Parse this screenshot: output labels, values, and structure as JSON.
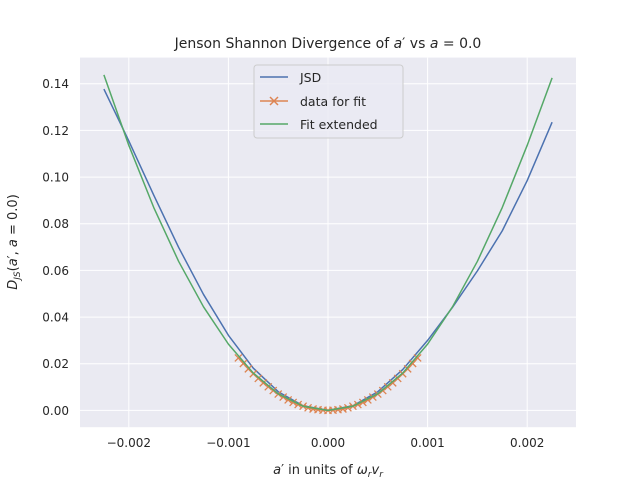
{
  "chart_data": {
    "type": "line",
    "title_parts": {
      "prefix": "Jenson Shannon Divergence of ",
      "var": "a",
      "prime": "′",
      "middle": " vs ",
      "var2": "a",
      "suffix": " = 0.0"
    },
    "xlabel_parts": {
      "var": "a",
      "prime": "′",
      "middle": " in units of ",
      "omega": "ω",
      "sub_r1": "r",
      "v": "v",
      "sub_r2": "r"
    },
    "ylabel_parts": {
      "D": "D",
      "sub": "JS",
      "open": "(",
      "var": "a",
      "prime": "′",
      "middle": ", ",
      "var2": "a",
      "suffix": " = 0.0)"
    },
    "xlim": [
      -0.00249,
      0.00249
    ],
    "ylim": [
      -0.0072,
      0.1512
    ],
    "xticks": [
      -0.002,
      -0.001,
      0.0,
      0.001,
      0.002
    ],
    "xtick_labels": [
      "−0.002",
      "−0.001",
      "0.000",
      "0.001",
      "0.002"
    ],
    "yticks": [
      0.0,
      0.02,
      0.04,
      0.06,
      0.08,
      0.1,
      0.12,
      0.14
    ],
    "ytick_labels": [
      "0.00",
      "0.02",
      "0.04",
      "0.06",
      "0.08",
      "0.10",
      "0.12",
      "0.14"
    ],
    "grid": true,
    "legend_position": "top-center",
    "series": [
      {
        "name": "JSD",
        "color": "#4c72b0",
        "marker": "none",
        "x": [
          -0.00225,
          -0.002,
          -0.00175,
          -0.0015,
          -0.00125,
          -0.001,
          -0.00075,
          -0.0005,
          -0.00025,
          0.0,
          0.00025,
          0.0005,
          0.00075,
          0.001,
          0.00125,
          0.0015,
          0.00175,
          0.002,
          0.00225
        ],
        "y": [
          0.1377,
          0.1155,
          0.0923,
          0.0699,
          0.0497,
          0.0322,
          0.0181,
          0.008,
          0.002,
          0.0,
          0.002,
          0.008,
          0.0175,
          0.03,
          0.0442,
          0.0598,
          0.077,
          0.0985,
          0.1235
        ]
      },
      {
        "name": "data for fit",
        "color": "#dd8452",
        "marker": "x",
        "x": [
          -0.0009,
          -0.00085,
          -0.0008,
          -0.00075,
          -0.0007,
          -0.00065,
          -0.0006,
          -0.00055,
          -0.0005,
          -0.00045,
          -0.0004,
          -0.00035,
          -0.0003,
          -0.00025,
          -0.0002,
          -0.00015,
          -0.0001,
          -5e-05,
          0.0,
          5e-05,
          0.0001,
          0.00015,
          0.0002,
          0.00025,
          0.0003,
          0.00035,
          0.0004,
          0.00045,
          0.0005,
          0.00055,
          0.0006,
          0.00065,
          0.0007,
          0.00075,
          0.0008,
          0.00085,
          0.0009
        ],
        "y": [
          0.0225,
          0.0201,
          0.0178,
          0.0157,
          0.0137,
          0.0118,
          0.0101,
          0.0085,
          0.007,
          0.0057,
          0.0045,
          0.0034,
          0.0025,
          0.0018,
          0.0011,
          0.0006,
          0.0003,
          0.0001,
          0.0,
          0.0001,
          0.0003,
          0.0006,
          0.0011,
          0.0018,
          0.0025,
          0.0034,
          0.0045,
          0.0057,
          0.007,
          0.0085,
          0.0101,
          0.0118,
          0.0137,
          0.0157,
          0.0178,
          0.0201,
          0.0225
        ]
      },
      {
        "name": "Fit extended",
        "color": "#55a868",
        "marker": "none",
        "x": [
          -0.00225,
          -0.002,
          -0.00175,
          -0.0015,
          -0.00125,
          -0.001,
          -0.00075,
          -0.0005,
          -0.00025,
          0.0,
          0.00025,
          0.0005,
          0.00075,
          0.001,
          0.00125,
          0.0015,
          0.00175,
          0.002,
          0.00225
        ],
        "y": [
          0.1438,
          0.1136,
          0.087,
          0.0639,
          0.0444,
          0.0284,
          0.016,
          0.0071,
          0.0018,
          0.0,
          0.0018,
          0.0071,
          0.016,
          0.0284,
          0.0444,
          0.0639,
          0.087,
          0.1136,
          0.1425
        ]
      }
    ]
  }
}
